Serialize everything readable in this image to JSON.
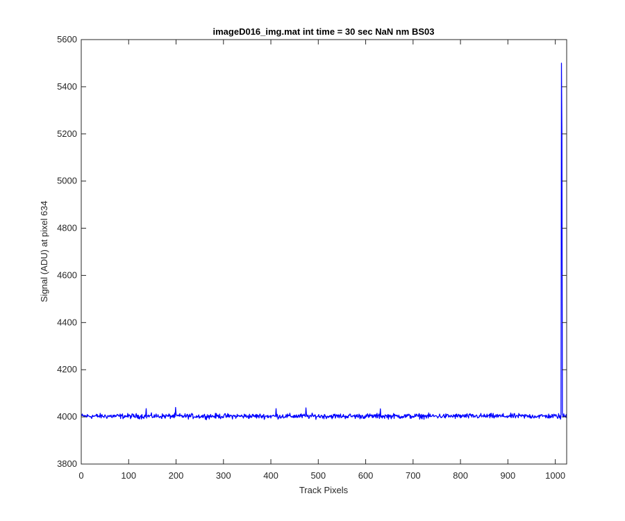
{
  "chart_data": {
    "type": "line",
    "title": "imageD016_img.mat int time = 30 sec  NaN nm BS03",
    "xlabel": "Track Pixels",
    "ylabel": "Signal (ADU) at pixel 634",
    "xlim": [
      0,
      1024
    ],
    "ylim": [
      3800,
      5600
    ],
    "xticks": [
      0,
      100,
      200,
      300,
      400,
      500,
      600,
      700,
      800,
      900,
      1000
    ],
    "yticks": [
      3800,
      4000,
      4200,
      4400,
      4600,
      4800,
      5000,
      5200,
      5400,
      5600
    ],
    "grid": false,
    "series": [
      {
        "color": "#0000ff",
        "baseline": 4003,
        "noise_amplitude": 10,
        "x_start": 1,
        "x_end": 1024,
        "peaks": [
          {
            "x": 137,
            "y": 4035
          },
          {
            "x": 199,
            "y": 4040
          },
          {
            "x": 411,
            "y": 4035
          },
          {
            "x": 474,
            "y": 4038
          },
          {
            "x": 631,
            "y": 4034
          },
          {
            "x": 1011,
            "y": 3990
          },
          {
            "x": 1013,
            "y": 5500
          },
          {
            "x": 1014,
            "y": 5200
          },
          {
            "x": 1015,
            "y": 4010
          }
        ]
      }
    ]
  }
}
